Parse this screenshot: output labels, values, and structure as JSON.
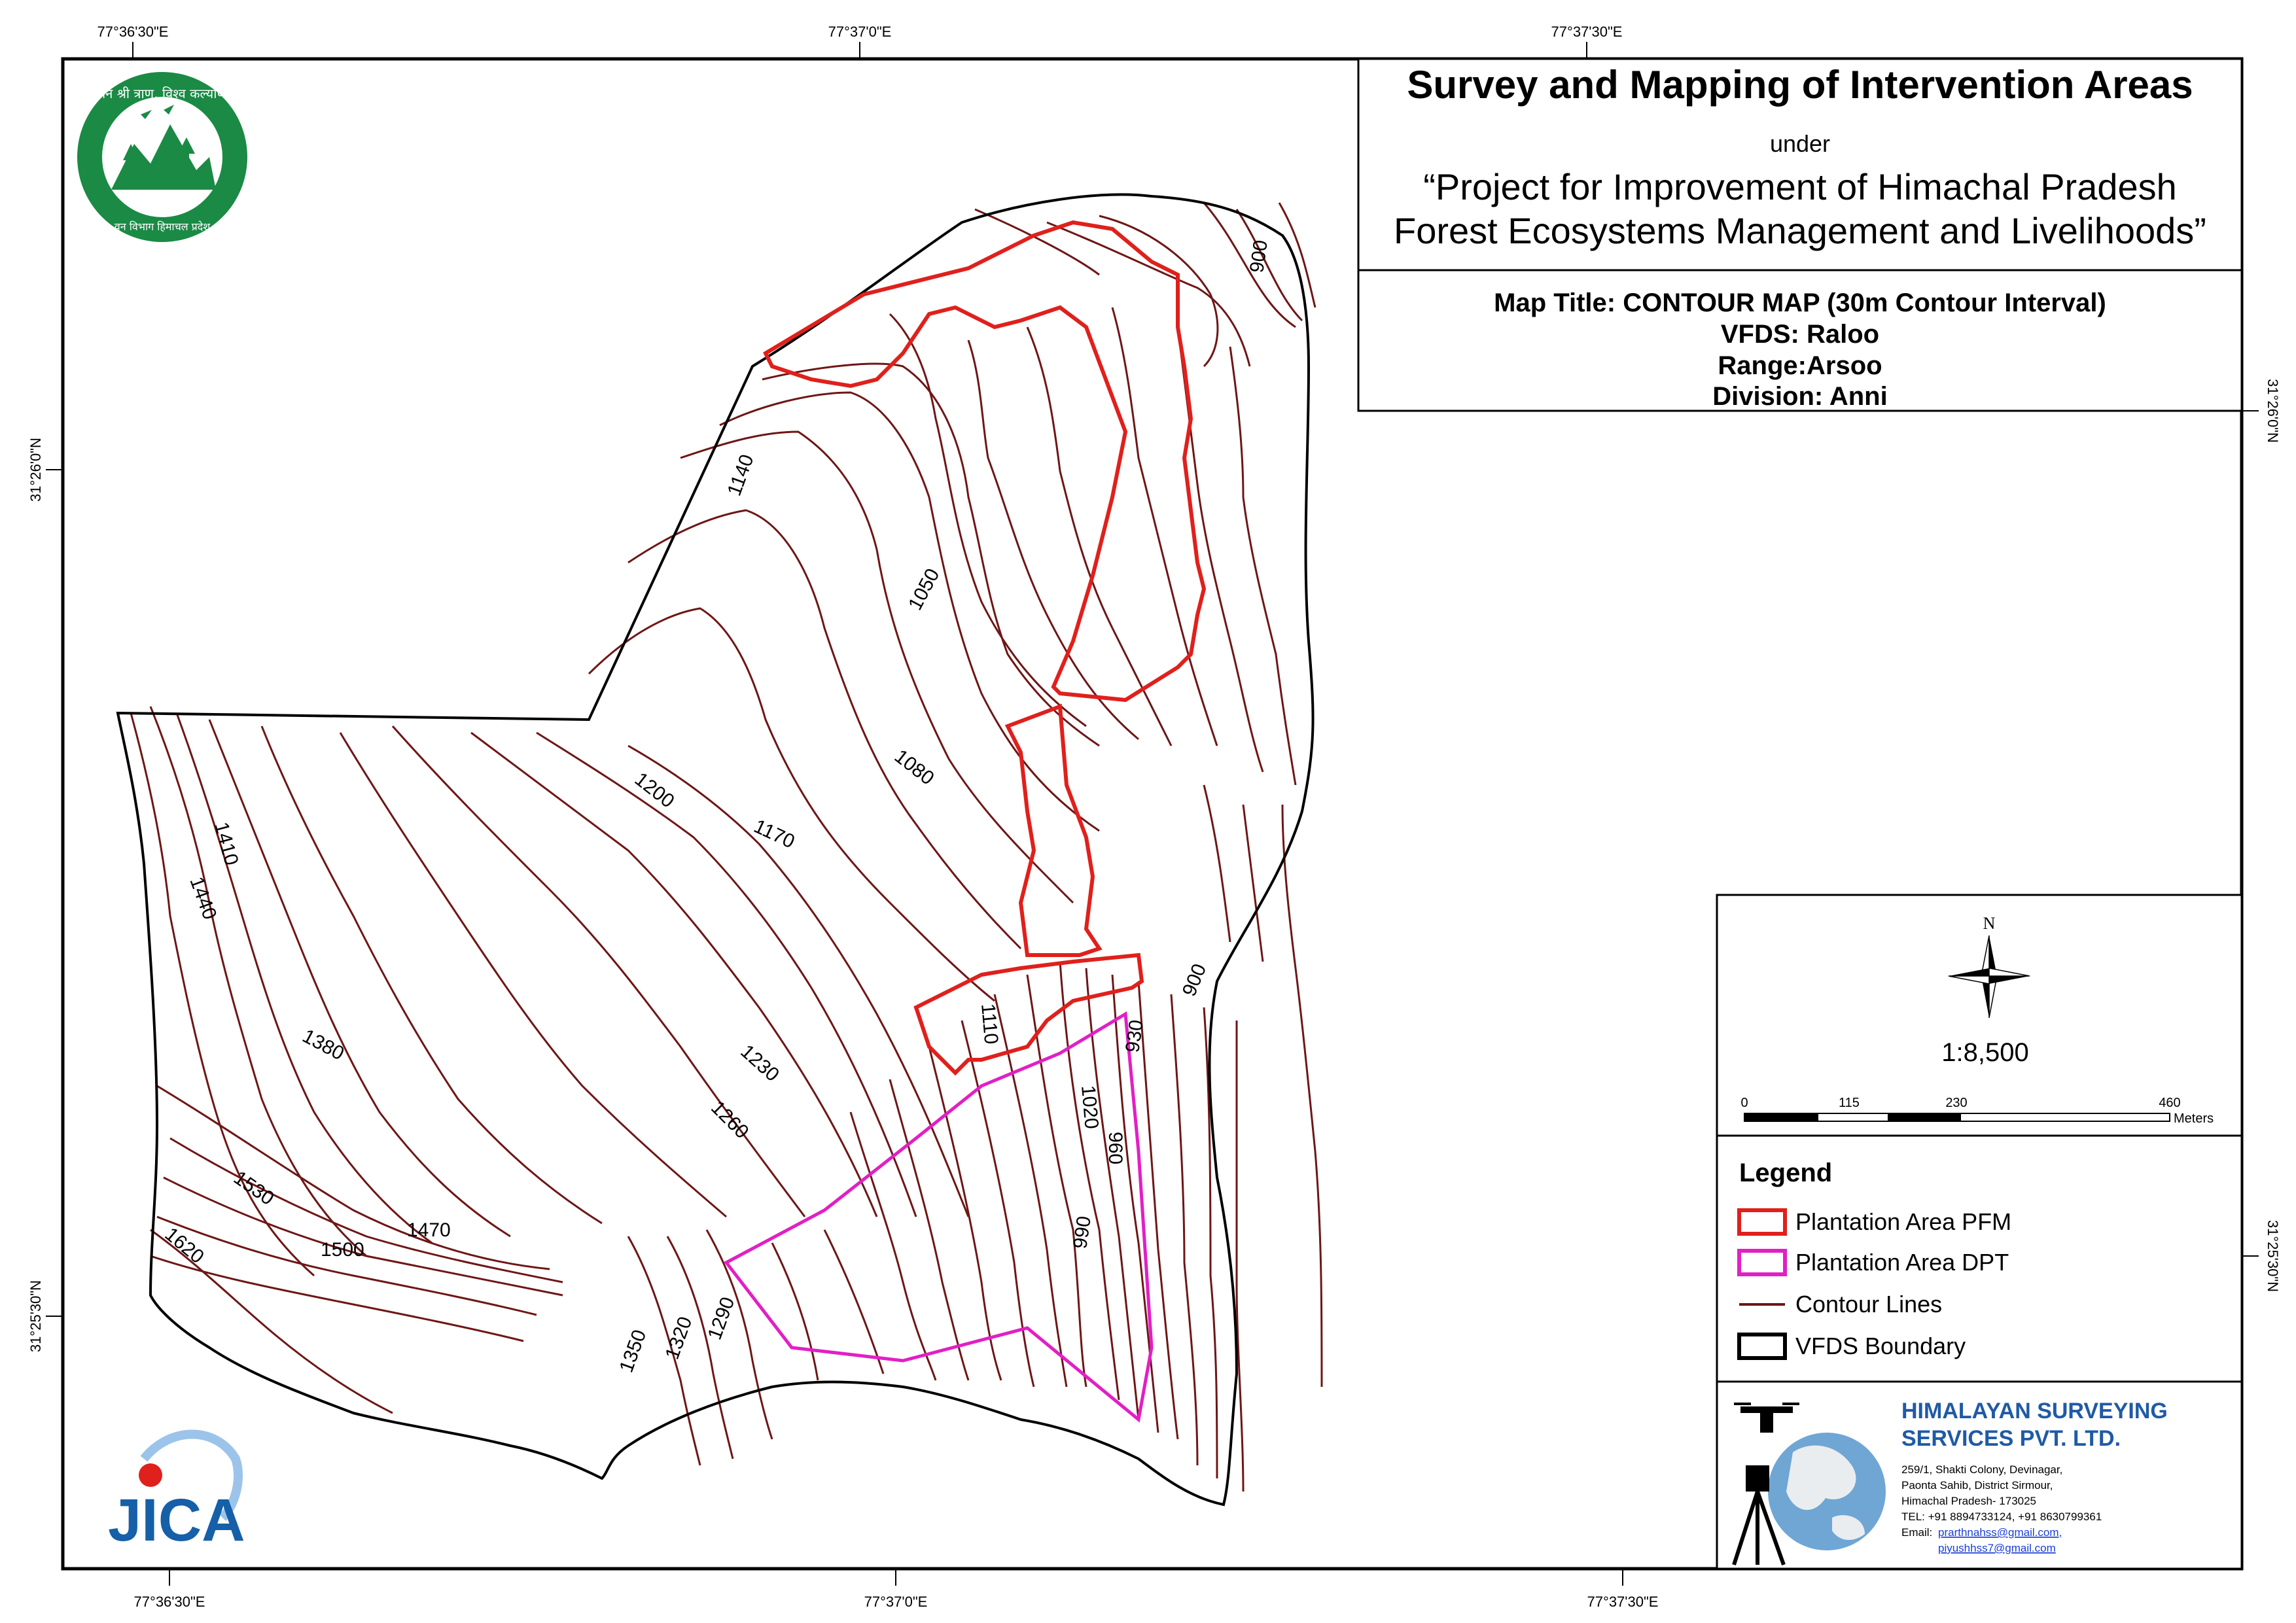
{
  "title": {
    "main": "Survey and Mapping of Intervention Areas",
    "under": "under",
    "project_line1": "“Project for Improvement of Himachal Pradesh",
    "project_line2": "Forest Ecosystems Management and Livelihoods”"
  },
  "map_info": {
    "map_title": "Map Title: CONTOUR MAP (30m Contour Interval)",
    "vfds": "VFDS: Raloo",
    "range": "Range:Arsoo",
    "division": "Division: Anni"
  },
  "graticule": {
    "top": [
      "77°36'30\"E",
      "77°37'0\"E",
      "77°37'30\"E"
    ],
    "bottom": [
      "77°36'30\"E",
      "77°37'0\"E",
      "77°37'30\"E"
    ],
    "left": [
      "31°26'0\"N",
      "31°25'30\"N"
    ],
    "right": [
      "31°26'0\"N",
      "31°25'30\"N"
    ]
  },
  "contour_labels": [
    "1140",
    "1050",
    "1080",
    "1200",
    "1170",
    "900",
    "1410",
    "1440",
    "1380",
    "1230",
    "1260",
    "1110",
    "900",
    "930",
    "1020",
    "960",
    "990",
    "1530",
    "1500",
    "1470",
    "1620",
    "1350",
    "1320",
    "1290"
  ],
  "north_label": "N",
  "scale": {
    "ratio": "1:8,500",
    "ticks": [
      "0",
      "115",
      "230",
      "460"
    ],
    "unit": "Meters"
  },
  "legend": {
    "title": "Legend",
    "items": [
      {
        "label": "Plantation Area PFM",
        "color": "#e0201c"
      },
      {
        "label": "Plantation Area DPT",
        "color": "#e21fc5"
      },
      {
        "label": "Contour Lines",
        "color": "#6e1616"
      },
      {
        "label": "VFDS Boundary",
        "color": "#000000"
      }
    ]
  },
  "company": {
    "name_line1": "HIMALAYAN SURVEYING",
    "name_line2": "SERVICES PVT. LTD.",
    "address": [
      "259/1, Shakti Colony, Devinagar,",
      "Paonta Sahib, District Sirmour,",
      "Himachal Pradesh- 173025"
    ],
    "tel": "TEL: +91 8894733124, +91 8630799361",
    "email_label": "Email:",
    "email1": "prarthnahss@gmail.com,",
    "email2": "piyushhss7@gmail.com"
  },
  "logos": {
    "top_left": "Himachal Pradesh Forest Department emblem",
    "top_left_text": "वन श्री त्राण, विश्व कल्याण",
    "top_left_bottom": "वन विभाग हिमाचल प्रदेश",
    "bottom_left": "JICA"
  },
  "colors": {
    "contour": "#6e1616",
    "pfm": "#e0201c",
    "dpt": "#e21fc5",
    "boundary": "#000000",
    "forest_green": "#1a8a45",
    "jica_blue": "#1560a8",
    "jica_red": "#e0201c"
  }
}
